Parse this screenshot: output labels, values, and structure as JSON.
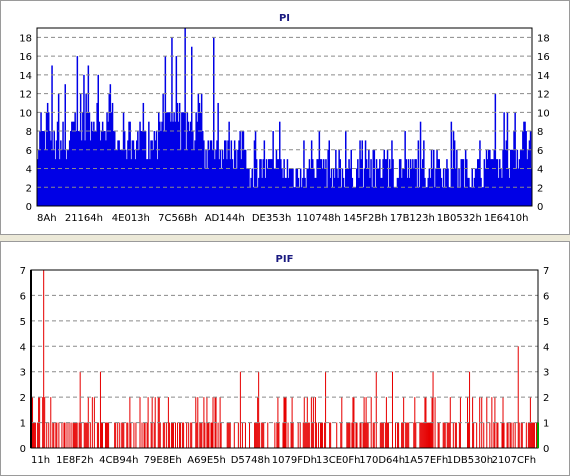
{
  "chart_data": [
    {
      "type": "bar",
      "title": "PI",
      "xlabel": "",
      "ylabel": "",
      "ylim": [
        0,
        19
      ],
      "yticks": [
        0,
        2,
        4,
        6,
        8,
        10,
        12,
        14,
        16,
        18
      ],
      "x_tick_labels": [
        "8Ah",
        "21164h",
        "4E013h",
        "7C56Bh",
        "AD144h",
        "DE353h",
        "110748h",
        "145F2Bh",
        "17B123h",
        "1B0532h",
        "1E6410h"
      ],
      "grid": true,
      "color": "#0000e6",
      "segments": [
        {
          "n": 15,
          "base": 6,
          "var": 2,
          "peaks": [
            [
              3,
              10
            ],
            [
              9,
              11
            ],
            [
              13,
              15
            ]
          ]
        },
        {
          "n": 15,
          "base": 6,
          "var": 2,
          "peaks": [
            [
              4,
              12
            ],
            [
              10,
              13
            ]
          ]
        },
        {
          "n": 20,
          "base": 8,
          "var": 2,
          "peaks": [
            [
              6,
              16
            ],
            [
              12,
              14
            ],
            [
              16,
              15
            ]
          ]
        },
        {
          "n": 20,
          "base": 8,
          "var": 2,
          "peaks": [
            [
              5,
              14
            ],
            [
              15,
              12
            ]
          ]
        },
        {
          "n": 20,
          "base": 6,
          "var": 2,
          "peaks": [
            [
              8,
              10
            ],
            [
              14,
              9
            ]
          ]
        },
        {
          "n": 20,
          "base": 6,
          "var": 2,
          "peaks": [
            [
              7,
              8
            ]
          ]
        },
        {
          "n": 20,
          "base": 8,
          "var": 2,
          "peaks": [
            [
              6,
              16
            ],
            [
              12,
              18
            ],
            [
              16,
              16
            ]
          ]
        },
        {
          "n": 20,
          "base": 7,
          "var": 3,
          "peaks": [
            [
              4,
              19
            ],
            [
              10,
              17
            ],
            [
              16,
              12
            ]
          ]
        },
        {
          "n": 20,
          "base": 5,
          "var": 2,
          "peaks": [
            [
              10,
              18
            ],
            [
              14,
              11
            ]
          ]
        },
        {
          "n": 20,
          "base": 5,
          "var": 2,
          "peaks": [
            [
              4,
              9
            ],
            [
              14,
              8
            ]
          ]
        },
        {
          "n": 20,
          "base": 3,
          "var": 2,
          "peaks": [
            [
              8,
              8
            ],
            [
              16,
              7
            ]
          ]
        },
        {
          "n": 20,
          "base": 3,
          "var": 2,
          "peaks": [
            [
              10,
              9
            ]
          ]
        },
        {
          "n": 20,
          "base": 3,
          "var": 2,
          "peaks": [
            [
              12,
              7
            ]
          ]
        },
        {
          "n": 20,
          "base": 3,
          "var": 2,
          "peaks": [
            [
              6,
              8
            ],
            [
              15,
              7
            ]
          ]
        },
        {
          "n": 20,
          "base": 3,
          "var": 2,
          "peaks": [
            [
              10,
              8
            ]
          ]
        },
        {
          "n": 20,
          "base": 3,
          "var": 2,
          "peaks": [
            [
              8,
              7
            ],
            [
              16,
              6
            ]
          ]
        },
        {
          "n": 20,
          "base": 3,
          "var": 2,
          "peaks": [
            [
              12,
              7
            ]
          ]
        },
        {
          "n": 20,
          "base": 3,
          "var": 2,
          "peaks": [
            [
              4,
              8
            ],
            [
              16,
              7
            ]
          ]
        },
        {
          "n": 20,
          "base": 3,
          "var": 2,
          "peaks": [
            [
              10,
              6
            ]
          ]
        },
        {
          "n": 20,
          "base": 3,
          "var": 2,
          "peaks": [
            [
              6,
              9
            ]
          ]
        },
        {
          "n": 20,
          "base": 3,
          "var": 2,
          "peaks": [
            [
              12,
              7
            ]
          ]
        },
        {
          "n": 20,
          "base": 4,
          "var": 2,
          "peaks": [
            [
              6,
              12
            ],
            [
              14,
              10
            ]
          ]
        },
        {
          "n": 20,
          "base": 5,
          "var": 2,
          "peaks": [
            [
              4,
              10
            ],
            [
              12,
              9
            ],
            [
              18,
              8
            ]
          ]
        }
      ]
    },
    {
      "type": "bar",
      "title": "PIF",
      "xlabel": "",
      "ylabel": "",
      "ylim": [
        0,
        7
      ],
      "yticks": [
        0,
        1,
        2,
        3,
        4,
        5,
        6,
        7
      ],
      "x_tick_labels": [
        "11h",
        "1E8F2h",
        "4CB94h",
        "79E8Eh",
        "A69E5h",
        "D5748h",
        "1079FDh",
        "13CE0Fh",
        "170D64h",
        "1A57EFh",
        "1DB530h",
        "2107CFh"
      ],
      "grid": true,
      "color": "#e60000",
      "end_marker_color": "#00a000",
      "peaks": [
        [
          12,
          7
        ],
        [
          48,
          3
        ],
        [
          68,
          3
        ],
        [
          164,
          2
        ],
        [
          206,
          3
        ],
        [
          224,
          3
        ],
        [
          290,
          3
        ],
        [
          340,
          3
        ],
        [
          356,
          3
        ],
        [
          396,
          3
        ],
        [
          432,
          3
        ],
        [
          480,
          4
        ],
        [
          492,
          2
        ]
      ]
    }
  ]
}
